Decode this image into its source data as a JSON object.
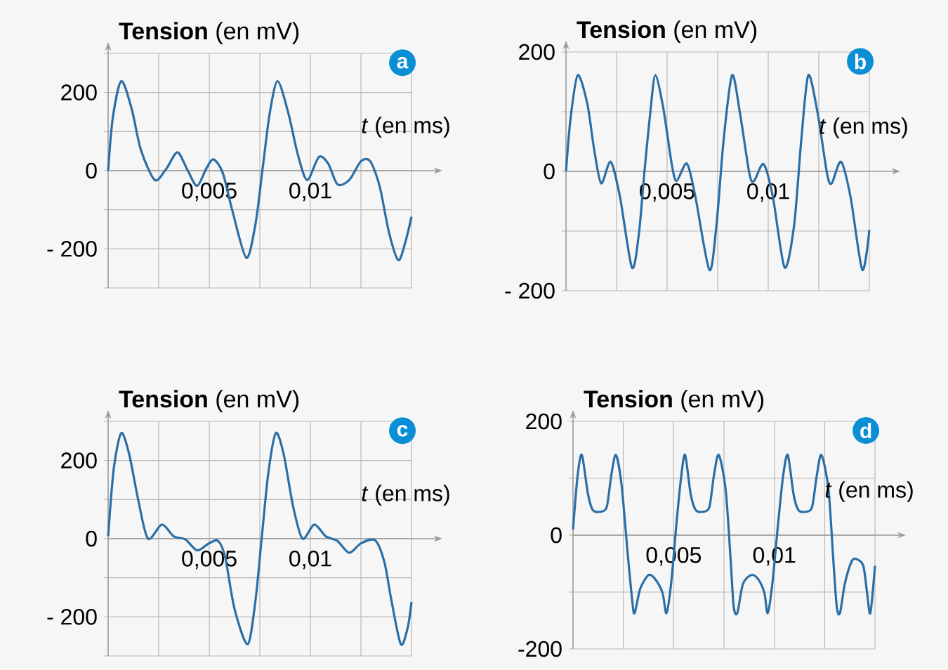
{
  "chart_data": [
    {
      "type": "line",
      "ylabel": "**Tension** (en mV)",
      "xlabel": "*t* (en ms)",
      "annotations": [
        "a"
      ],
      "color": "#2a6ea6",
      "grid": true,
      "xlim": [
        0,
        0.015
      ],
      "ylim": [
        -300,
        300
      ],
      "xticks": [
        {
          "value": 0.0025,
          "label": null
        },
        {
          "value": 0.005,
          "label": "0,005"
        },
        {
          "value": 0.0075,
          "label": null
        },
        {
          "value": 0.01,
          "label": "0,01"
        },
        {
          "value": 0.0125,
          "label": null
        },
        {
          "value": 0.015,
          "label": null
        }
      ],
      "yticks": [
        {
          "value": -300,
          "label": null
        },
        {
          "value": -200,
          "label": "- 200"
        },
        {
          "value": -100,
          "label": null
        },
        0,
        {
          "value": 100,
          "label": null
        },
        200,
        {
          "value": 300,
          "label": null
        }
      ],
      "x": [
        0,
        0.00023,
        0.00065,
        0.00116,
        0.00162,
        0.00231,
        0.00289,
        0.00343,
        0.00394,
        0.0044,
        0.00486,
        0.00521,
        0.00567,
        0.00613,
        0.00683,
        0.00729,
        0.00764,
        0.00799,
        0.00838,
        0.00891,
        0.00938,
        0.00984,
        0.01042,
        0.01088,
        0.01134,
        0.01192,
        0.0125,
        0.01296,
        0.01343,
        0.01389,
        0.01435,
        0.0147,
        0.015
      ],
      "values": [
        0,
        135,
        229,
        159,
        53,
        -24,
        6,
        47,
        0,
        -39,
        6,
        29,
        -6,
        -100,
        -223,
        -135,
        6,
        147,
        229,
        147,
        41,
        -24,
        35,
        18,
        -35,
        -24,
        24,
        24,
        -41,
        -159,
        -229,
        -182,
        -118
      ]
    },
    {
      "type": "line",
      "ylabel": "**Tension** (en mV)",
      "xlabel": "*t* (en ms)",
      "annotations": [
        "b"
      ],
      "color": "#2a6ea6",
      "grid": true,
      "xlim": [
        0,
        0.015
      ],
      "ylim": [
        -200,
        200
      ],
      "xticks": [
        {
          "value": 0.0025,
          "label": null
        },
        {
          "value": 0.005,
          "label": "0,005"
        },
        {
          "value": 0.0075,
          "label": null
        },
        {
          "value": 0.01,
          "label": "0,01"
        },
        {
          "value": 0.0125,
          "label": null
        },
        {
          "value": 0.015,
          "label": null
        }
      ],
      "yticks": [
        {
          "value": -200,
          "label": "- 200"
        },
        {
          "value": -100,
          "label": null
        },
        0,
        {
          "value": 100,
          "label": null
        },
        200
      ],
      "x": [
        0,
        0.00023,
        0.00058,
        0.00105,
        0.0014,
        0.00174,
        0.00221,
        0.00267,
        0.00326,
        0.0036,
        0.00388,
        0.00419,
        0.00442,
        0.00481,
        0.00523,
        0.00547,
        0.00598,
        0.0064,
        0.00709,
        0.00744,
        0.00779,
        0.00821,
        0.0086,
        0.00907,
        0.0093,
        0.00977,
        0.01023,
        0.01081,
        0.01128,
        0.01163,
        0.01198,
        0.01244,
        0.01291,
        0.01314,
        0.0136,
        0.01407,
        0.01465,
        0.015
      ],
      "values": [
        0,
        90,
        161,
        114,
        35,
        -20,
        16,
        -43,
        -161,
        -106,
        0,
        106,
        161,
        106,
        12,
        -16,
        13,
        -43,
        -165,
        -90,
        51,
        161,
        98,
        -4,
        -16,
        12,
        -43,
        -161,
        -90,
        51,
        161,
        98,
        -4,
        -20,
        16,
        -43,
        -165,
        -98
      ]
    },
    {
      "type": "line",
      "ylabel": "**Tension** (en mV)",
      "xlabel": "*t* (en ms)",
      "annotations": [
        "c"
      ],
      "color": "#2a6ea6",
      "grid": true,
      "xlim": [
        0,
        0.015
      ],
      "ylim": [
        -300,
        300
      ],
      "xticks": [
        {
          "value": 0.0025,
          "label": null
        },
        {
          "value": 0.005,
          "label": "0,005"
        },
        {
          "value": 0.0075,
          "label": null
        },
        {
          "value": 0.01,
          "label": "0,01"
        },
        {
          "value": 0.0125,
          "label": null
        },
        {
          "value": 0.015,
          "label": null
        }
      ],
      "yticks": [
        {
          "value": -300,
          "label": null
        },
        {
          "value": -200,
          "label": "- 200"
        },
        {
          "value": -100,
          "label": null
        },
        0,
        {
          "value": 100,
          "label": null
        },
        200,
        {
          "value": 300,
          "label": null
        }
      ],
      "x": [
        0,
        0.00028,
        0.00065,
        0.00104,
        0.0015,
        0.00197,
        0.00266,
        0.00324,
        0.00382,
        0.0044,
        0.00498,
        0.00544,
        0.00579,
        0.00625,
        0.0069,
        0.00729,
        0.00759,
        0.00792,
        0.00829,
        0.00868,
        0.00914,
        0.00961,
        0.01019,
        0.01076,
        0.01134,
        0.01192,
        0.0125,
        0.0132,
        0.01366,
        0.014,
        0.01447,
        0.01481,
        0.015
      ],
      "values": [
        6,
        180,
        270,
        216,
        96,
        0,
        36,
        6,
        -2,
        -30,
        -12,
        -6,
        -48,
        -180,
        -270,
        -156,
        0,
        168,
        270,
        216,
        84,
        0,
        36,
        6,
        -6,
        -36,
        -12,
        -4,
        -60,
        -156,
        -270,
        -228,
        -162
      ]
    },
    {
      "type": "line",
      "ylabel": "**Tension** (en mV)",
      "xlabel": "*t* (en ms)",
      "annotations": [
        "d"
      ],
      "color": "#2a6ea6",
      "grid": true,
      "xlim": [
        0,
        0.015
      ],
      "ylim": [
        -200,
        200
      ],
      "xticks": [
        {
          "value": 0.0025,
          "label": null
        },
        {
          "value": 0.005,
          "label": "0,005"
        },
        {
          "value": 0.0075,
          "label": null
        },
        {
          "value": 0.01,
          "label": "0,01"
        },
        {
          "value": 0.0125,
          "label": null
        },
        {
          "value": 0.015,
          "label": null
        }
      ],
      "yticks": [
        {
          "value": -200,
          "label": "-200"
        },
        {
          "value": -100,
          "label": null
        },
        0,
        {
          "value": 100,
          "label": null
        },
        200
      ],
      "x": [
        0,
        0.00023,
        0.00044,
        0.00074,
        0.00097,
        0.00132,
        0.00167,
        0.0019,
        0.00213,
        0.00241,
        0.00271,
        0.00295,
        0.00306,
        0.00334,
        0.00376,
        0.0041,
        0.00445,
        0.00464,
        0.00487,
        0.00515,
        0.00538,
        0.00557,
        0.00584,
        0.00608,
        0.00642,
        0.00677,
        0.007,
        0.00724,
        0.00758,
        0.00782,
        0.00798,
        0.00816,
        0.00844,
        0.00886,
        0.00921,
        0.00951,
        0.00967,
        0.0099,
        0.0102,
        0.01044,
        0.01067,
        0.01095,
        0.01118,
        0.01153,
        0.01187,
        0.01211,
        0.01234,
        0.01269,
        0.01292,
        0.0131,
        0.01326,
        0.0135,
        0.01384,
        0.01408,
        0.01442,
        0.01461,
        0.01477,
        0.015
      ],
      "values": [
        10,
        105,
        141,
        73,
        45,
        41,
        49,
        105,
        141,
        89,
        -30,
        -118,
        -137,
        -94,
        -70,
        -78,
        -102,
        -137,
        -86,
        25,
        105,
        141,
        73,
        45,
        41,
        49,
        105,
        141,
        81,
        -38,
        -125,
        -137,
        -86,
        -70,
        -78,
        -102,
        -137,
        -86,
        25,
        105,
        141,
        73,
        45,
        41,
        49,
        105,
        141,
        81,
        -38,
        -125,
        -137,
        -86,
        -46,
        -42,
        -54,
        -102,
        -137,
        -54
      ]
    }
  ]
}
